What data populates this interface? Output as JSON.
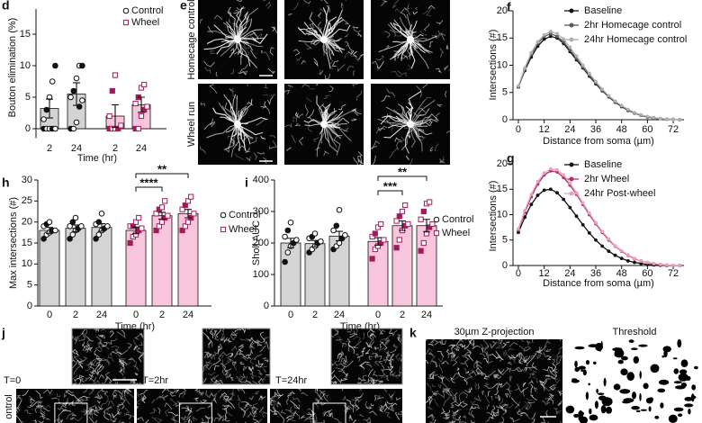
{
  "chart_data": [
    {
      "type": "bar",
      "panel": "d",
      "ylabel": "Bouton elimination (%)",
      "xlabel": "Time (hr)",
      "ylim": [
        -1.5,
        19
      ],
      "yticks": [
        0,
        5,
        10,
        15
      ],
      "series": [
        {
          "name": "Control",
          "color": "#d4d4d4",
          "marker_color": "#111111",
          "marker": "circle",
          "categories": [
            "2",
            "24"
          ],
          "values": [
            3.2,
            5.5
          ],
          "errors": [
            1.5,
            1.8
          ],
          "points": [
            [
              0,
              0,
              0,
              0,
              0,
              1.5,
              3,
              5,
              7.5,
              10
            ],
            [
              0,
              0,
              1,
              3.5,
              4.5,
              5,
              6,
              8,
              10,
              10
            ]
          ]
        },
        {
          "name": "Wheel",
          "color": "#f8c6dc",
          "marker_color": "#a3195b",
          "marker": "square",
          "categories": [
            "2",
            "24"
          ],
          "values": [
            2,
            3.8
          ],
          "errors": [
            1.8,
            1.2
          ],
          "points": [
            [
              0,
              0,
              0,
              0,
              0.5,
              2,
              6,
              8.5
            ],
            [
              0,
              0,
              2,
              3,
              3.5,
              4,
              5,
              6.5,
              7
            ]
          ]
        }
      ],
      "significance": []
    },
    {
      "type": "bar",
      "panel": "h",
      "ylabel": "Max intersections (#)",
      "xlabel": "Time (hr)",
      "ylim": [
        0,
        30
      ],
      "yticks": [
        0,
        5,
        10,
        15,
        20,
        25,
        30
      ],
      "series": [
        {
          "name": "Control",
          "color": "#d4d4d4",
          "marker_color": "#111111",
          "marker": "circle",
          "categories": [
            "0",
            "2",
            "24"
          ],
          "values": [
            18,
            18.5,
            18.7
          ],
          "errors": [
            0.7,
            0.8,
            0.9
          ],
          "points": [
            [
              16,
              17,
              17.5,
              18,
              18,
              19,
              19.5,
              20
            ],
            [
              16,
              17,
              18,
              18.5,
              19,
              19,
              20,
              21
            ],
            [
              16,
              17,
              18,
              18.5,
              19,
              19.5,
              20,
              22
            ]
          ]
        },
        {
          "name": "Wheel",
          "color": "#f8c6dc",
          "marker_color": "#a3195b",
          "marker": "square",
          "categories": [
            "0",
            "2",
            "24"
          ],
          "values": [
            18,
            21.5,
            22
          ],
          "errors": [
            0.8,
            0.8,
            1
          ],
          "points": [
            [
              15,
              16.5,
              17,
              18,
              18.5,
              19,
              19,
              20,
              21
            ],
            [
              18,
              19,
              20,
              21,
              21.5,
              22,
              23,
              23.5,
              25
            ],
            [
              18,
              19,
              20,
              21,
              22,
              23,
              24,
              25,
              26
            ]
          ]
        }
      ],
      "significance": [
        "****",
        "**"
      ]
    },
    {
      "type": "bar",
      "panel": "i",
      "ylabel": "Sholl AUC",
      "xlabel": "Time (hr)",
      "ylim": [
        0,
        400
      ],
      "yticks": [
        0,
        100,
        200,
        300,
        400
      ],
      "series": [
        {
          "name": "Control",
          "color": "#d4d4d4",
          "marker_color": "#111111",
          "marker": "circle",
          "categories": [
            "0",
            "2",
            "24"
          ],
          "values": [
            200,
            198,
            222
          ],
          "errors": [
            15,
            10,
            15
          ],
          "points": [
            [
              140,
              170,
              190,
              200,
              210,
              220,
              240,
              265
            ],
            [
              170,
              180,
              190,
              200,
              205,
              215,
              220,
              230
            ],
            [
              180,
              190,
              200,
              215,
              225,
              240,
              255,
              305
            ]
          ]
        },
        {
          "name": "Wheel",
          "color": "#f8c6dc",
          "marker_color": "#a3195b",
          "marker": "square",
          "categories": [
            "0",
            "2",
            "24"
          ],
          "values": [
            205,
            255,
            255
          ],
          "errors": [
            12,
            15,
            20
          ],
          "points": [
            [
              150,
              180,
              190,
              200,
              210,
              220,
              230,
              250,
              260
            ],
            [
              185,
              210,
              240,
              255,
              260,
              270,
              285,
              300,
              320
            ],
            [
              175,
              200,
              230,
              250,
              260,
              275,
              300,
              325,
              330
            ]
          ]
        }
      ],
      "significance": [
        "***",
        "**"
      ]
    },
    {
      "type": "line",
      "panel": "f",
      "ylabel": "Intersections (#)",
      "xlabel": "Distance from soma (µm)",
      "xlim": [
        -2.5,
        77
      ],
      "xticks": [
        0,
        12,
        24,
        36,
        48,
        60,
        72
      ],
      "ylim": [
        0,
        20
      ],
      "yticks": [
        0,
        5,
        10,
        15,
        20
      ],
      "x": [
        0,
        3,
        6,
        9,
        12,
        15,
        18,
        21,
        24,
        27,
        30,
        33,
        36,
        39,
        42,
        45,
        48,
        51,
        54,
        57,
        60,
        63,
        66,
        69,
        72,
        75
      ],
      "series": [
        {
          "name": "Baseline",
          "color": "#111111",
          "values": [
            6,
            9,
            11.5,
            13.5,
            14.8,
            15.3,
            15,
            14,
            12.5,
            11,
            9.5,
            8,
            6.6,
            5.3,
            4.2,
            3.2,
            2.4,
            1.7,
            1.2,
            0.8,
            0.5,
            0.3,
            0.2,
            0.1,
            0.05,
            0
          ]
        },
        {
          "name": "2hr Homecage control",
          "color": "#5a5a5a",
          "values": [
            6,
            9.2,
            12,
            14,
            15.3,
            15.8,
            15.3,
            14.3,
            12.8,
            11.3,
            9.7,
            8.2,
            6.8,
            5.4,
            4.3,
            3.3,
            2.5,
            1.8,
            1.2,
            0.8,
            0.5,
            0.3,
            0.2,
            0.1,
            0.05,
            0
          ]
        },
        {
          "name": "24hr Homecage control",
          "color": "#b0b0b0",
          "values": [
            6.2,
            9.5,
            12.3,
            14.3,
            15.6,
            16.2,
            15.8,
            14.8,
            13.3,
            11.7,
            10,
            8.5,
            7,
            5.6,
            4.4,
            3.4,
            2.6,
            1.9,
            1.3,
            0.9,
            0.6,
            0.4,
            0.2,
            0.1,
            0.05,
            0
          ]
        }
      ]
    },
    {
      "type": "line",
      "panel": "g",
      "ylabel": "Intersections (#)",
      "xlabel": "Distance from soma (µm)",
      "xlim": [
        -2.5,
        77
      ],
      "xticks": [
        0,
        12,
        24,
        36,
        48,
        60,
        72
      ],
      "ylim": [
        0,
        20
      ],
      "yticks": [
        0,
        5,
        10,
        15,
        20
      ],
      "x": [
        0,
        3,
        6,
        9,
        12,
        15,
        18,
        21,
        24,
        27,
        30,
        33,
        36,
        39,
        42,
        45,
        48,
        51,
        54,
        57,
        60,
        63,
        66,
        69,
        72,
        75
      ],
      "series": [
        {
          "name": "Baseline",
          "color": "#111111",
          "values": [
            6.5,
            9.5,
            12,
            13.8,
            14.8,
            15,
            14.3,
            13,
            11.4,
            9.7,
            8,
            6.4,
            5,
            3.8,
            2.8,
            2,
            1.4,
            0.9,
            0.6,
            0.4,
            0.2,
            0.1,
            0.05,
            0,
            0,
            0
          ]
        },
        {
          "name": "2hr Wheel",
          "color": "#b0306a",
          "values": [
            7,
            10.5,
            13.5,
            16,
            17.8,
            18.6,
            18.4,
            17.3,
            15.8,
            14,
            12,
            10,
            8.2,
            6.5,
            5,
            3.8,
            2.8,
            2,
            1.3,
            0.9,
            0.6,
            0.3,
            0.2,
            0.1,
            0,
            0
          ]
        },
        {
          "name": "24hr Post-wheel",
          "color": "#e8a3c3",
          "values": [
            7.2,
            10.8,
            14,
            16.5,
            18.2,
            19,
            18.8,
            17.8,
            16.2,
            14.3,
            12.3,
            10.3,
            8.4,
            6.7,
            5.2,
            3.9,
            2.9,
            2.1,
            1.4,
            0.9,
            0.6,
            0.4,
            0.2,
            0.1,
            0.05,
            0
          ]
        }
      ]
    }
  ],
  "images": {
    "e": {
      "letter": "e",
      "rows": [
        "Homecage control",
        "Wheel run"
      ]
    },
    "j": {
      "letter": "j",
      "times": [
        "T=0",
        "T=2hr",
        "T=24hr"
      ],
      "row": "ontrol"
    },
    "k": {
      "letter": "k",
      "titles": [
        "30µm Z-projection",
        "Threshold"
      ]
    }
  }
}
